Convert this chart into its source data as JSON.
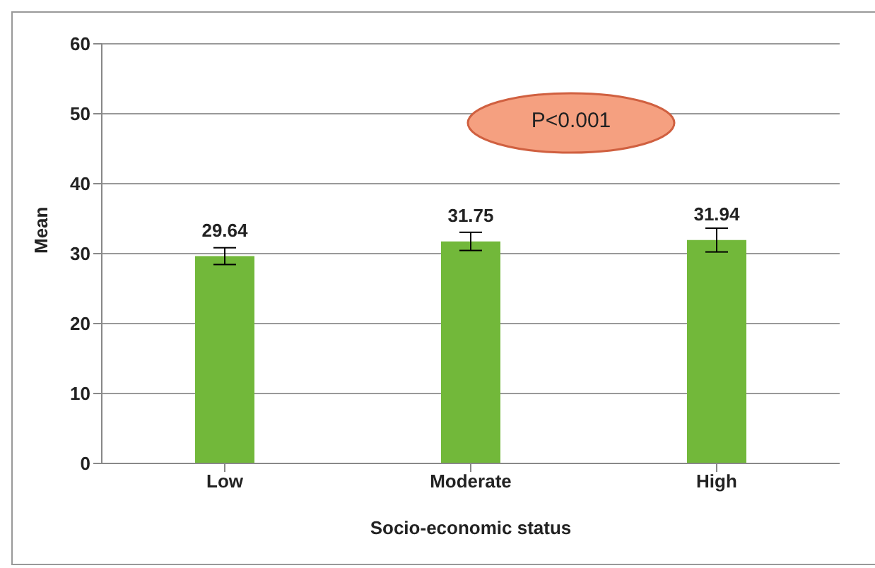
{
  "chart_data": {
    "type": "bar",
    "xlabel": "Socio-economic status",
    "ylabel": "Mean",
    "categories": [
      "Low",
      "Moderate",
      "High"
    ],
    "series": [
      {
        "color": "#72b83a",
        "values": [
          29.64,
          31.75,
          31.94
        ],
        "errors": [
          1.2,
          1.3,
          1.7
        ]
      }
    ],
    "ylim": [
      0,
      60
    ],
    "yticks": [
      0,
      10,
      20,
      30,
      40,
      50,
      60
    ],
    "grid": "y",
    "data_labels": true,
    "annotations": [
      "P<0.001"
    ]
  }
}
